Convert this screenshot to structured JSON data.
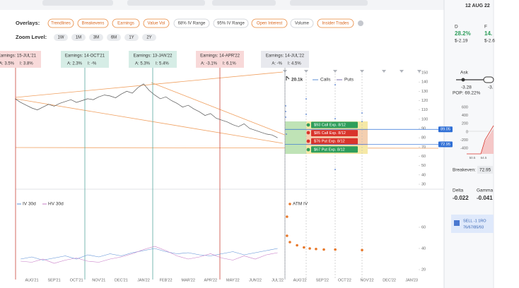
{
  "toolbar": {
    "overlays_label": "Overlays:",
    "overlays": [
      {
        "label": "Trendlines",
        "active": true
      },
      {
        "label": "Breakevens",
        "active": true
      },
      {
        "label": "Earnings",
        "active": true
      },
      {
        "label": "Value Vol",
        "active": true
      },
      {
        "label": "68% IV Range",
        "active": false
      },
      {
        "label": "95% IV Range",
        "active": false
      },
      {
        "label": "Open Interest",
        "active": true
      },
      {
        "label": "Volume",
        "active": false
      },
      {
        "label": "Insider Trades",
        "active": true
      }
    ],
    "zoom_label": "Zoom Level:",
    "zoom": [
      "1W",
      "1M",
      "3M",
      "6M",
      "1Y",
      "2Y"
    ]
  },
  "earnings": [
    {
      "title": "Earnings: 15-JUL'21",
      "actual": "A: 3.5%",
      "implied": "I: 3.8%",
      "tone": "miss"
    },
    {
      "title": "Earnings: 14-OCT'21",
      "actual": "A: 2.3%",
      "implied": "I: -%",
      "tone": "beat"
    },
    {
      "title": "Earnings: 13-JAN'22",
      "actual": "A: 5.3%",
      "implied": "I: 5.4%",
      "tone": "beat"
    },
    {
      "title": "Earnings: 14-APR'22",
      "actual": "A: -3.1%",
      "implied": "I: 6.1%",
      "tone": "miss"
    },
    {
      "title": "Earnings: 14-JUL'22",
      "actual": "A: -%",
      "implied": "I: 4.5%",
      "tone": "pending"
    }
  ],
  "price_chart": {
    "type": "line",
    "ylim": [
      30,
      150
    ],
    "yticks": [
      150,
      140,
      130,
      120,
      110,
      100,
      90,
      80,
      70,
      60,
      50,
      40,
      30
    ],
    "categories": [
      "AUG'21",
      "SEP'21",
      "OCT'21",
      "NOV'21",
      "DEC'21",
      "JAN'22",
      "FEB'22",
      "MAR'22",
      "APR'22",
      "MAY'22",
      "JUN'22",
      "JUL'22",
      "AUG'22",
      "SEP'22",
      "OCT'22",
      "NOV'22",
      "DEC'22",
      "JAN'23"
    ],
    "price": {
      "color": "#555555",
      "x": [
        -0.75,
        -0.5,
        -0.25,
        0,
        0.25,
        0.5,
        0.75,
        1,
        1.25,
        1.5,
        1.75,
        2,
        2.25,
        2.5,
        2.75,
        3,
        3.25,
        3.5,
        3.75,
        4,
        4.25,
        4.5,
        4.75,
        5,
        5.25,
        5.5,
        5.75,
        6,
        6.25,
        6.5,
        6.75,
        7,
        7.25,
        7.5,
        7.75,
        8,
        8.25,
        8.5,
        8.75,
        9,
        9.25,
        9.5,
        9.75,
        10,
        10.25,
        10.5,
        10.75,
        11
      ],
      "values": [
        122,
        118,
        115,
        112,
        110,
        113,
        116,
        114,
        117,
        119,
        121,
        118,
        120,
        122,
        121,
        124,
        126,
        125,
        123,
        127,
        130,
        128,
        134,
        138,
        131,
        126,
        122,
        124,
        120,
        117,
        113,
        115,
        111,
        108,
        104,
        106,
        101,
        99,
        97,
        94,
        92,
        95,
        90,
        88,
        86,
        84,
        83,
        80
      ]
    },
    "legend": {
      "volume": "20.1k",
      "calls": "Calls",
      "puts": "Puts"
    },
    "positions": [
      {
        "label": "$93 Call Exp. 8/12",
        "color": "#2e9e5b"
      },
      {
        "label": "$85 Call Exp. 8/12",
        "color": "#d9342b"
      },
      {
        "label": "$76 Put Exp. 8/12",
        "color": "#d9342b"
      },
      {
        "label": "$67 Put Exp. 8/12",
        "color": "#2e9e5b"
      }
    ],
    "price_tags": [
      89.05,
      72.95
    ],
    "tag_color": "#2f6fd6"
  },
  "vol_chart": {
    "type": "line",
    "ylim": [
      20,
      60
    ],
    "yticks": [
      60,
      40,
      20
    ],
    "series": [
      {
        "name": "IV 30d",
        "color": "#5b8fd6",
        "x": [
          -0.5,
          0,
          0.5,
          1,
          1.5,
          2,
          2.5,
          3,
          3.5,
          4,
          4.5,
          5,
          5.5,
          6,
          6.5,
          7,
          7.5,
          8,
          8.5,
          9,
          9.5,
          10,
          10.5,
          11
        ],
        "values": [
          30,
          32,
          29,
          31,
          33,
          30,
          34,
          32,
          35,
          33,
          36,
          38,
          40,
          37,
          35,
          36,
          34,
          33,
          35,
          37,
          34,
          36,
          38,
          40
        ]
      },
      {
        "name": "HV 30d",
        "color": "#c77dc7",
        "x": [
          -0.5,
          0,
          0.5,
          1,
          1.5,
          2,
          2.5,
          3,
          3.5,
          4,
          4.5,
          5,
          5.5,
          6,
          6.5,
          7,
          7.5,
          8,
          8.5,
          9,
          9.5,
          10,
          10.5,
          11
        ],
        "values": [
          28,
          27,
          30,
          26,
          29,
          31,
          28,
          27,
          30,
          32,
          35,
          39,
          42,
          38,
          33,
          30,
          32,
          35,
          31,
          29,
          33,
          30,
          34,
          36
        ]
      }
    ],
    "atm": {
      "name": "ATM IV",
      "color": "#e8782a",
      "x": [
        11.42,
        11.42,
        11.55,
        11.87,
        12.18,
        12.44,
        12.72,
        13.07,
        13.58,
        14.78
      ],
      "values": [
        70,
        52,
        46,
        43,
        41,
        40,
        39.5,
        39,
        39,
        38.5
      ]
    }
  },
  "right": {
    "date": "12 AUG 22",
    "d": {
      "label": "D",
      "pct": "28.2%",
      "val": "$-2.19"
    },
    "f": {
      "label": "F",
      "pct": "14.",
      "val": "$-2.6"
    },
    "ask": "Ask",
    "ask_low": "-3.28",
    "ask_high": "-3.",
    "pop": "POP: 69.22%",
    "pl_ticks": [
      600,
      400,
      200,
      0,
      -200,
      -400
    ],
    "pl_x": [
      "50.5",
      "64.5"
    ],
    "breakeven_label": "Breakeven:",
    "breakeven": "72.95",
    "delta_label": "Delta",
    "delta": "-0.022",
    "gamma_label": "Gamma",
    "gamma": "-0.041",
    "order": [
      "SELL -1 1RO",
      "76/67/85/93"
    ]
  }
}
